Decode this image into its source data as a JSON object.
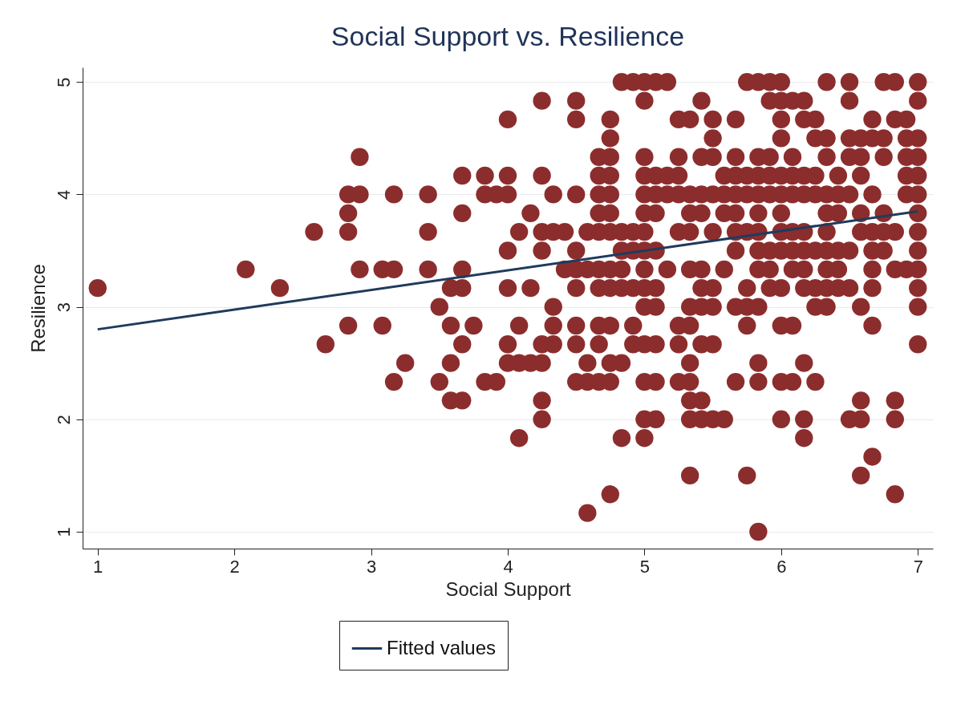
{
  "chart_data": {
    "type": "scatter",
    "title": "Social Support vs. Resilience",
    "xlabel": "Social Support",
    "ylabel": "Resilience",
    "xlim": [
      0.89,
      7.11
    ],
    "ylim": [
      0.85,
      5.13
    ],
    "xticks": [
      1,
      2,
      3,
      4,
      5,
      6,
      7
    ],
    "yticks": [
      1,
      2,
      3,
      4,
      5
    ],
    "grid": "y",
    "legend": "bottom",
    "series": [
      {
        "type": "scatter",
        "marker": "circle",
        "color": "#8c2d2d",
        "x": [
          1,
          2.083,
          2.333,
          2.583,
          2.667,
          2.833,
          2.833,
          2.833,
          2.833,
          2.917,
          2.917,
          2.917,
          3.083,
          3.083,
          3.167,
          3.167,
          3.167,
          3.25,
          3.417,
          3.417,
          3.417,
          3.5,
          3.5,
          3.583,
          3.583,
          3.583,
          3.583,
          3.667,
          3.667,
          3.667,
          3.667,
          3.667,
          3.667,
          3.75,
          3.833,
          3.833,
          3.833,
          3.917,
          3.917,
          4,
          4,
          4,
          4,
          4,
          4,
          4,
          4.083,
          4.083,
          4.083,
          4.083,
          4.167,
          4.167,
          4.167,
          4.25,
          4.25,
          4.25,
          4.25,
          4.25,
          4.25,
          4.25,
          4.25,
          4.333,
          4.333,
          4.333,
          4.333,
          4.333,
          4.417,
          4.417,
          4.5,
          4.5,
          4.5,
          4.5,
          4.5,
          4.5,
          4.5,
          4.5,
          4.5,
          4.583,
          4.583,
          4.583,
          4.583,
          4.583,
          4.667,
          4.667,
          4.667,
          4.667,
          4.667,
          4.667,
          4.667,
          4.667,
          4.667,
          4.667,
          4.75,
          4.75,
          4.75,
          4.75,
          4.75,
          4.75,
          4.75,
          4.75,
          4.75,
          4.75,
          4.75,
          4.75,
          4.75,
          4.833,
          4.833,
          4.833,
          4.833,
          4.833,
          4.833,
          4.833,
          4.917,
          4.917,
          4.917,
          4.917,
          4.917,
          4.917,
          5,
          5,
          5,
          5,
          5,
          5,
          5,
          5,
          5,
          5,
          5,
          5,
          5,
          5,
          5,
          5.083,
          5.083,
          5.083,
          5.083,
          5.083,
          5.083,
          5.083,
          5.083,
          5.083,
          5.083,
          5.167,
          5.167,
          5.167,
          5.167,
          5.25,
          5.25,
          5.25,
          5.25,
          5.25,
          5.25,
          5.25,
          5.25,
          5.333,
          5.333,
          5.333,
          5.333,
          5.333,
          5.333,
          5.333,
          5.333,
          5.333,
          5.333,
          5.333,
          5.333,
          5.417,
          5.417,
          5.417,
          5.417,
          5.417,
          5.417,
          5.417,
          5.417,
          5.417,
          5.417,
          5.5,
          5.5,
          5.5,
          5.5,
          5.5,
          5.5,
          5.5,
          5.5,
          5.5,
          5.583,
          5.583,
          5.583,
          5.583,
          5.583,
          5.667,
          5.667,
          5.667,
          5.667,
          5.667,
          5.667,
          5.667,
          5.667,
          5.667,
          5.75,
          5.75,
          5.75,
          5.75,
          5.75,
          5.75,
          5.75,
          5.75,
          5.833,
          5.833,
          5.833,
          5.833,
          5.833,
          5.833,
          5.833,
          5.833,
          5.833,
          5.833,
          5.833,
          5.833,
          5.917,
          5.917,
          5.917,
          5.917,
          5.917,
          5.917,
          5.917,
          5.917,
          6,
          6,
          6,
          6,
          6,
          6,
          6,
          6,
          6,
          6,
          6,
          6,
          6,
          6.083,
          6.083,
          6.083,
          6.083,
          6.083,
          6.083,
          6.083,
          6.083,
          6.083,
          6.167,
          6.167,
          6.167,
          6.167,
          6.167,
          6.167,
          6.167,
          6.167,
          6.167,
          6.167,
          6.167,
          6.25,
          6.25,
          6.25,
          6.25,
          6.25,
          6.25,
          6.25,
          6.25,
          6.333,
          6.333,
          6.333,
          6.333,
          6.333,
          6.333,
          6.333,
          6.333,
          6.333,
          6.333,
          6.417,
          6.417,
          6.417,
          6.417,
          6.417,
          6.417,
          6.5,
          6.5,
          6.5,
          6.5,
          6.5,
          6.5,
          6.5,
          6.5,
          6.583,
          6.583,
          6.583,
          6.583,
          6.583,
          6.583,
          6.583,
          6.583,
          6.583,
          6.667,
          6.667,
          6.667,
          6.667,
          6.667,
          6.667,
          6.667,
          6.667,
          6.667,
          6.75,
          6.75,
          6.75,
          6.75,
          6.75,
          6.75,
          6.833,
          6.833,
          6.833,
          6.833,
          6.833,
          6.833,
          6.833,
          6.917,
          6.917,
          6.917,
          6.917,
          6.917,
          6.917,
          7,
          7,
          7,
          7,
          7,
          7,
          7,
          7,
          7,
          7,
          7,
          7,
          7
        ],
        "values": [
          3.167,
          3.333,
          3.167,
          3.667,
          2.667,
          4,
          3.833,
          3.667,
          2.833,
          4.333,
          4,
          3.333,
          3.333,
          2.833,
          4,
          3.333,
          2.333,
          2.5,
          4,
          3.667,
          3.333,
          3,
          2.333,
          3.167,
          2.833,
          2.5,
          2.167,
          4.167,
          3.833,
          3.333,
          3.167,
          2.667,
          2.167,
          2.833,
          4.167,
          4,
          2.333,
          4,
          2.333,
          4.667,
          4.167,
          4,
          3.5,
          3.167,
          2.667,
          2.5,
          3.667,
          2.833,
          2.5,
          1.833,
          3.833,
          3.167,
          2.5,
          4.833,
          4.167,
          3.667,
          3.5,
          2.667,
          2.5,
          2.167,
          2,
          4,
          3.667,
          3,
          2.833,
          2.667,
          3.667,
          3.333,
          4.833,
          4.667,
          4,
          3.5,
          3.333,
          3.167,
          2.833,
          2.667,
          2.333,
          3.667,
          3.333,
          2.5,
          2.333,
          1.167,
          4.333,
          4.167,
          4,
          3.833,
          3.667,
          3.333,
          3.167,
          2.833,
          2.667,
          2.333,
          4.667,
          4.5,
          4.333,
          4.167,
          4,
          3.833,
          3.667,
          3.333,
          3.167,
          2.833,
          2.5,
          2.333,
          1.333,
          5,
          3.667,
          3.5,
          3.333,
          3.167,
          2.5,
          1.833,
          5,
          3.667,
          3.5,
          3.167,
          2.833,
          2.667,
          5,
          4.833,
          4.333,
          4.167,
          4,
          3.833,
          3.667,
          3.5,
          3.333,
          3.167,
          3,
          2.667,
          2.333,
          2,
          1.833,
          5,
          4.167,
          4,
          3.833,
          3.5,
          3.167,
          3,
          2.667,
          2.333,
          2,
          5,
          4.167,
          4,
          3.333,
          4.667,
          4.333,
          4.167,
          4,
          3.667,
          2.833,
          2.667,
          2.333,
          4.667,
          4,
          3.833,
          3.667,
          3.333,
          3,
          2.833,
          2.5,
          2.333,
          2.167,
          2,
          1.5,
          4.833,
          4.333,
          4,
          3.833,
          3.333,
          3.167,
          3,
          2.667,
          2.167,
          2,
          4.667,
          4.5,
          4.333,
          4,
          3.667,
          3.167,
          3,
          2.667,
          2,
          4.167,
          4,
          3.833,
          3.333,
          2,
          4.667,
          4.333,
          4.167,
          4,
          3.833,
          3.667,
          3.5,
          3,
          2.333,
          5,
          4.167,
          4,
          3.667,
          3.167,
          3,
          2.833,
          1.5,
          5,
          4.333,
          4.167,
          4,
          3.833,
          3.667,
          3.5,
          3.333,
          3,
          2.5,
          2.333,
          1,
          5,
          4.833,
          4.333,
          4.167,
          4,
          3.5,
          3.333,
          3.167,
          5,
          4.833,
          4.667,
          4.5,
          4.167,
          4,
          3.833,
          3.667,
          3.5,
          3.167,
          2.833,
          2.333,
          2,
          4.833,
          4.333,
          4.167,
          4,
          3.667,
          3.5,
          3.333,
          2.833,
          2.333,
          4.833,
          4.667,
          4.167,
          4,
          3.667,
          3.5,
          3.333,
          3.167,
          2.5,
          2,
          1.833,
          4.667,
          4.5,
          4.167,
          4,
          3.5,
          3.167,
          3,
          2.333,
          5,
          4.5,
          4.333,
          4,
          3.833,
          3.667,
          3.5,
          3.333,
          3.167,
          3,
          4.167,
          4,
          3.833,
          3.5,
          3.333,
          3.167,
          5,
          4.833,
          4.5,
          4.333,
          4,
          3.5,
          3.167,
          2,
          4.5,
          4.333,
          4.167,
          3.833,
          3.667,
          3,
          2.167,
          2,
          1.5,
          4.667,
          4.5,
          4,
          3.667,
          3.5,
          3.333,
          3.167,
          2.833,
          1.667,
          5,
          4.5,
          4.333,
          3.833,
          3.667,
          3.5,
          5,
          4.667,
          3.667,
          3.333,
          2.167,
          2,
          1.333,
          4.667,
          4.5,
          4.333,
          4.167,
          4,
          3.333,
          5,
          4.833,
          4.5,
          4.333,
          4.167,
          4,
          3.833,
          3.667,
          3.5,
          3.333,
          3.167,
          3,
          2.667
        ]
      },
      {
        "type": "line",
        "name": "Fitted values",
        "color": "#1f3b5c",
        "x": [
          1,
          7
        ],
        "values": [
          2.8,
          3.85
        ]
      }
    ]
  }
}
